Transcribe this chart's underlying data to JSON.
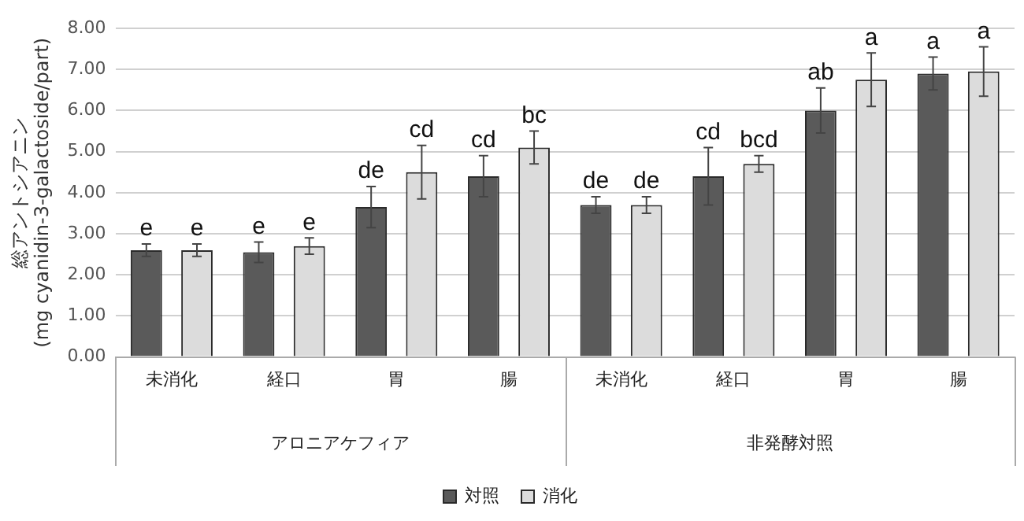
{
  "chart_data": {
    "type": "bar",
    "ylabel": "総アントシアニン\n(mg cyanidin-3-galactoside/part)",
    "categories": [
      "未消化",
      "経口",
      "胃",
      "腸",
      "未消化",
      "経口",
      "胃",
      "腸"
    ],
    "annotations": [
      "アロニアケフィア",
      "非発酵対照"
    ],
    "series": [
      {
        "name": "対照",
        "color": "#5a5a5a",
        "values": [
          2.6,
          2.55,
          3.65,
          4.4,
          3.7,
          4.4,
          6.0,
          6.9
        ],
        "errors": [
          0.15,
          0.25,
          0.5,
          0.5,
          0.2,
          0.7,
          0.55,
          0.4
        ],
        "value_labels": [
          "e",
          "e",
          "de",
          "cd",
          "de",
          "cd",
          "ab",
          "a"
        ]
      },
      {
        "name": "消化",
        "color": "#dcdcdc",
        "values": [
          2.6,
          2.7,
          4.5,
          5.1,
          3.7,
          4.7,
          6.75,
          6.95
        ],
        "errors": [
          0.15,
          0.2,
          0.65,
          0.4,
          0.2,
          0.2,
          0.65,
          0.6
        ],
        "value_labels": [
          "e",
          "e",
          "cd",
          "bc",
          "de",
          "bcd",
          "a",
          "a"
        ]
      }
    ],
    "ylim": [
      0,
      8
    ],
    "yticks": [
      {
        "value": 0,
        "label": "0.00"
      },
      {
        "value": 1,
        "label": "1.00"
      },
      {
        "value": 2,
        "label": "2.00"
      },
      {
        "value": 3,
        "label": "3.00"
      },
      {
        "value": 4,
        "label": "4.00"
      },
      {
        "value": 5,
        "label": "5.00"
      },
      {
        "value": 6,
        "label": "6.00"
      },
      {
        "value": 7,
        "label": "7.00"
      },
      {
        "value": 8,
        "label": "8.00"
      }
    ],
    "grid": "y",
    "legend": "bottom"
  }
}
